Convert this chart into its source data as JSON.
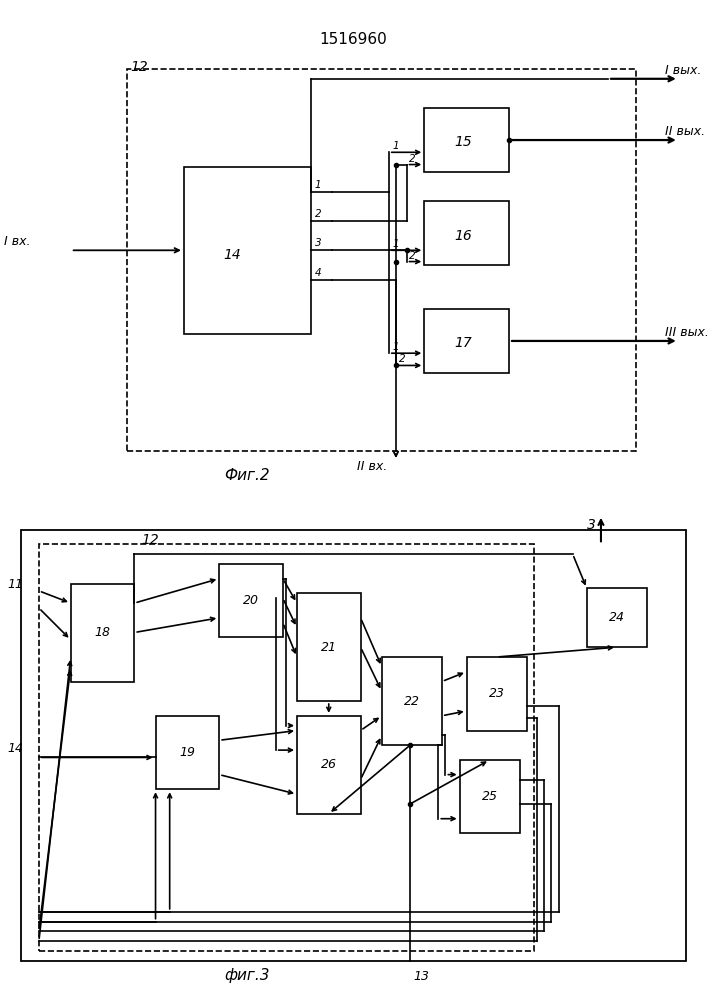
{
  "title": "1516960",
  "fig2_label": "Фиг.2",
  "fig3_label": "фиг.3",
  "lw": 1.2,
  "lw_arrow": 1.5,
  "bg": "white"
}
